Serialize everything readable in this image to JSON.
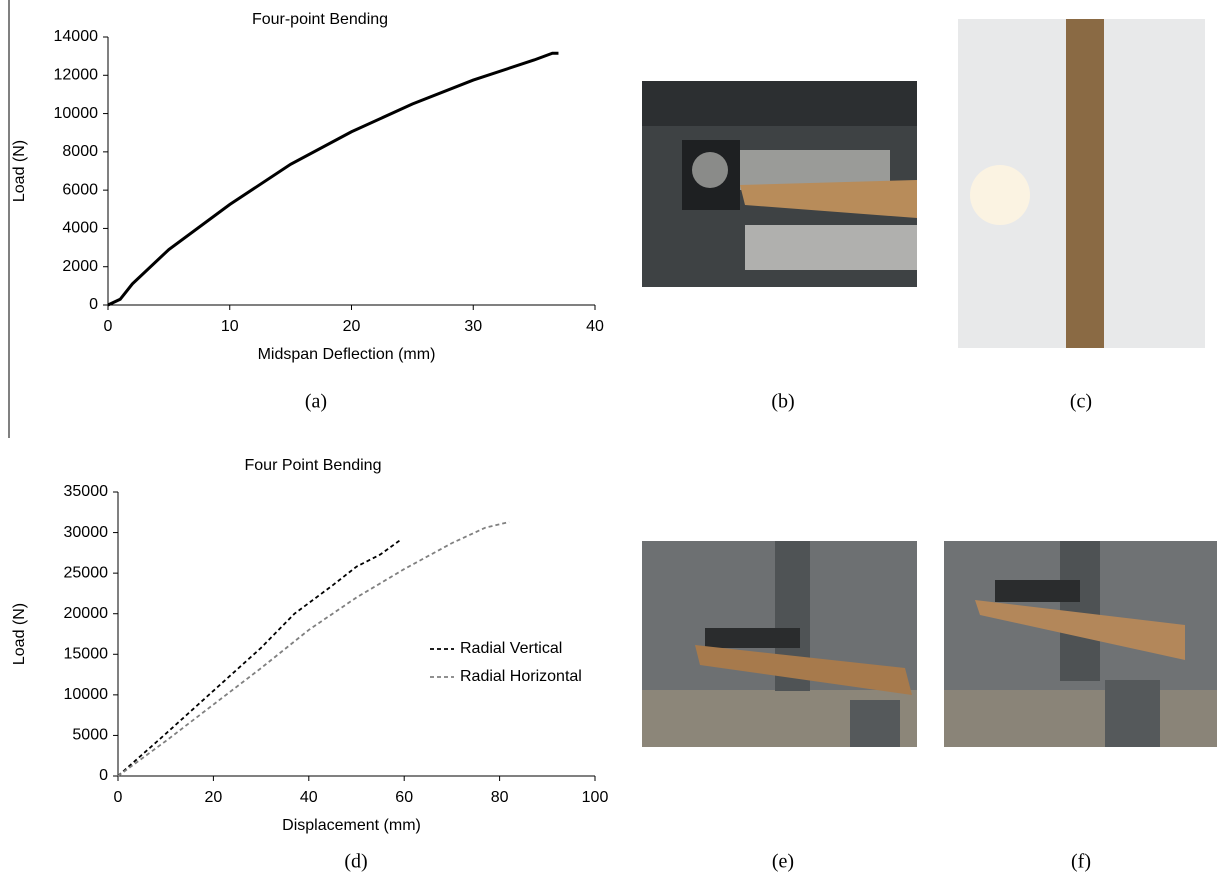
{
  "chart_data": [
    {
      "type": "line",
      "title": "Four-point Bending",
      "xlabel": "Midspan Deflection (mm)",
      "ylabel": "Load (N)",
      "xlim": [
        0,
        40
      ],
      "xticks": [
        0,
        10,
        20,
        30,
        40
      ],
      "ylim": [
        0,
        14000
      ],
      "yticks": [
        0,
        2000,
        4000,
        6000,
        8000,
        10000,
        12000,
        14000
      ],
      "series": [
        {
          "color": "#000000",
          "dashed": false,
          "x": [
            0,
            1,
            2,
            5,
            10,
            15,
            20,
            25,
            30,
            35,
            36.5,
            37
          ],
          "values": [
            0,
            300,
            1100,
            2900,
            5250,
            7350,
            9050,
            10500,
            11750,
            12800,
            13150,
            13150
          ]
        }
      ]
    },
    {
      "type": "line",
      "title": "Four Point Bending",
      "xlabel": "Displacement (mm)",
      "ylabel": "Load (N)",
      "xlim": [
        0,
        100
      ],
      "xticks": [
        0,
        20,
        40,
        60,
        80,
        100
      ],
      "ylim": [
        0,
        35000
      ],
      "yticks": [
        0,
        5000,
        10000,
        15000,
        20000,
        25000,
        30000,
        35000
      ],
      "legend": "right",
      "series": [
        {
          "name": "Radial Vertical",
          "color": "#000000",
          "dashed": true,
          "x": [
            0,
            10,
            20,
            30,
            37,
            45,
            50,
            55,
            59
          ],
          "values": [
            0,
            5200,
            10500,
            15800,
            20000,
            23500,
            25800,
            27300,
            29000
          ]
        },
        {
          "name": "Radial Horizontal",
          "color": "#808080",
          "dashed": true,
          "x": [
            0,
            10,
            20,
            30,
            40,
            50,
            60,
            70,
            77,
            82
          ],
          "values": [
            0,
            4300,
            8800,
            13300,
            18000,
            22000,
            25500,
            28700,
            30600,
            31300
          ]
        }
      ]
    }
  ],
  "captions": [
    "(a)",
    "(b)",
    "(c)",
    "(d)",
    "(e)",
    "(f)"
  ]
}
